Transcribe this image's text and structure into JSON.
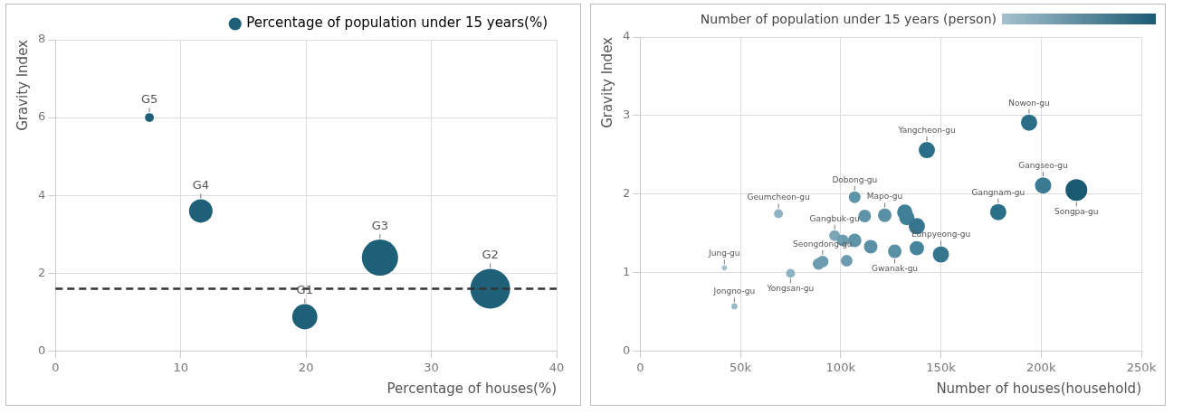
{
  "chart_data": [
    {
      "type": "bubble",
      "xlabel": "Percentage of houses(%)",
      "ylabel": "Gravity Index",
      "xlim": [
        0,
        40
      ],
      "xticks": [
        0,
        10,
        20,
        30,
        40
      ],
      "ylim": [
        0,
        8
      ],
      "yticks": [
        0,
        2,
        4,
        6,
        8
      ],
      "grid": true,
      "legend": "top",
      "series": [
        {
          "name": "Percentage of population under 15 years(%)",
          "color": "#1f6079",
          "x": [
            7.5,
            11.6,
            19.9,
            25.9,
            34.7
          ],
          "values": [
            6.0,
            3.6,
            0.88,
            2.4,
            1.6
          ],
          "sizes": [
            0.05,
            0.35,
            0.4,
            0.83,
            1
          ]
        }
      ],
      "ref_lines": [
        {
          "axis": "y",
          "value": 1.6,
          "color": "#333333",
          "line_style": "dashed"
        }
      ],
      "annotations": [
        {
          "text": "G5",
          "x": 7.5,
          "y": 6.0
        },
        {
          "text": "G4",
          "x": 11.6,
          "y": 3.6
        },
        {
          "text": "G1",
          "x": 19.9,
          "y": 0.88
        },
        {
          "text": "G3",
          "x": 25.9,
          "y": 2.4
        },
        {
          "text": "G2",
          "x": 34.7,
          "y": 1.6
        }
      ]
    },
    {
      "type": "bubble",
      "xlabel": "Number of houses(household)",
      "ylabel": "Gravity Index",
      "clabel": "Number of population under 15 years (person)",
      "xlim": [
        0,
        250000
      ],
      "xticks": [
        0,
        {
          "value": 50000,
          "label": "50k"
        },
        {
          "value": 100000,
          "label": "100k"
        },
        {
          "value": 150000,
          "label": "150k"
        },
        {
          "value": 200000,
          "label": "200k"
        },
        {
          "value": 250000,
          "label": "250k"
        }
      ],
      "ylim": [
        0,
        4
      ],
      "yticks": [
        0,
        1,
        2,
        3,
        4
      ],
      "grid": true,
      "series": [
        {
          "x": [
            194000,
            143000,
            201000,
            217600,
            178600,
            107000,
            69000,
            112000,
            122000,
            132000,
            133000,
            138000,
            97000,
            101000,
            107000,
            115000,
            127000,
            138000,
            150000,
            103000,
            91000,
            89000,
            75000,
            42000,
            47000
          ],
          "values": [
            2.91,
            2.56,
            2.11,
            2.05,
            1.77,
            1.96,
            1.75,
            1.72,
            1.73,
            1.77,
            1.7,
            1.59,
            1.47,
            1.41,
            1.41,
            1.33,
            1.27,
            1.31,
            1.23,
            1.15,
            1.14,
            1.11,
            0.99,
            1.06,
            0.57
          ],
          "sizes": [
            0.56,
            0.56,
            0.56,
            1,
            0.56,
            0.29,
            0.17,
            0.34,
            0.39,
            0.5,
            0.5,
            0.56,
            0.25,
            0.29,
            0.39,
            0.39,
            0.39,
            0.44,
            0.56,
            0.29,
            0.29,
            0.29,
            0.17,
            0.06,
            0.08
          ],
          "colors": [
            "#2b6e88",
            "#2b6e88",
            "#3a7b93",
            "#1b5a73",
            "#2b6e88",
            "#5f94a8",
            "#8fb3c3",
            "#5f94a8",
            "#5a90a5",
            "#3f7f97",
            "#3f7f97",
            "#35758e",
            "#7ba6b8",
            "#6d9cb0",
            "#5f94a8",
            "#5a90a5",
            "#5a90a5",
            "#46849b",
            "#35758e",
            "#6d9cb0",
            "#6d9cb0",
            "#6d9cb0",
            "#8fb3c3",
            "#a5c1cd",
            "#9dbcca"
          ]
        }
      ],
      "annotations": [
        {
          "text": "Nowon-gu",
          "x": 194000,
          "y": 2.91
        },
        {
          "text": "Yangcheon-gu",
          "x": 143000,
          "y": 2.56
        },
        {
          "text": "Gangseo-gu",
          "x": 201000,
          "y": 2.11
        },
        {
          "text": "Songpa-gu",
          "x": 217600,
          "y": 2.05
        },
        {
          "text": "Gangnam-gu",
          "x": 178600,
          "y": 1.77
        },
        {
          "text": "Dobong-gu",
          "x": 107000,
          "y": 1.96
        },
        {
          "text": "Geumcheon-gu",
          "x": 69000,
          "y": 1.75
        },
        {
          "text": "Mapo-gu",
          "x": 122000,
          "y": 1.73
        },
        {
          "text": "Gangbuk-gu",
          "x": 97000,
          "y": 1.47
        },
        {
          "text": "Gwanak-gu",
          "x": 127000,
          "y": 1.27
        },
        {
          "text": "Eunpyeong-gu",
          "x": 150000,
          "y": 1.23
        },
        {
          "text": "Seongdong-gu",
          "x": 91000,
          "y": 1.14
        },
        {
          "text": "Yongsan-gu",
          "x": 75000,
          "y": 0.99
        },
        {
          "text": "Jung-gu",
          "x": 42000,
          "y": 1.06
        },
        {
          "text": "Jongno-gu",
          "x": 47000,
          "y": 0.57
        }
      ]
    }
  ]
}
